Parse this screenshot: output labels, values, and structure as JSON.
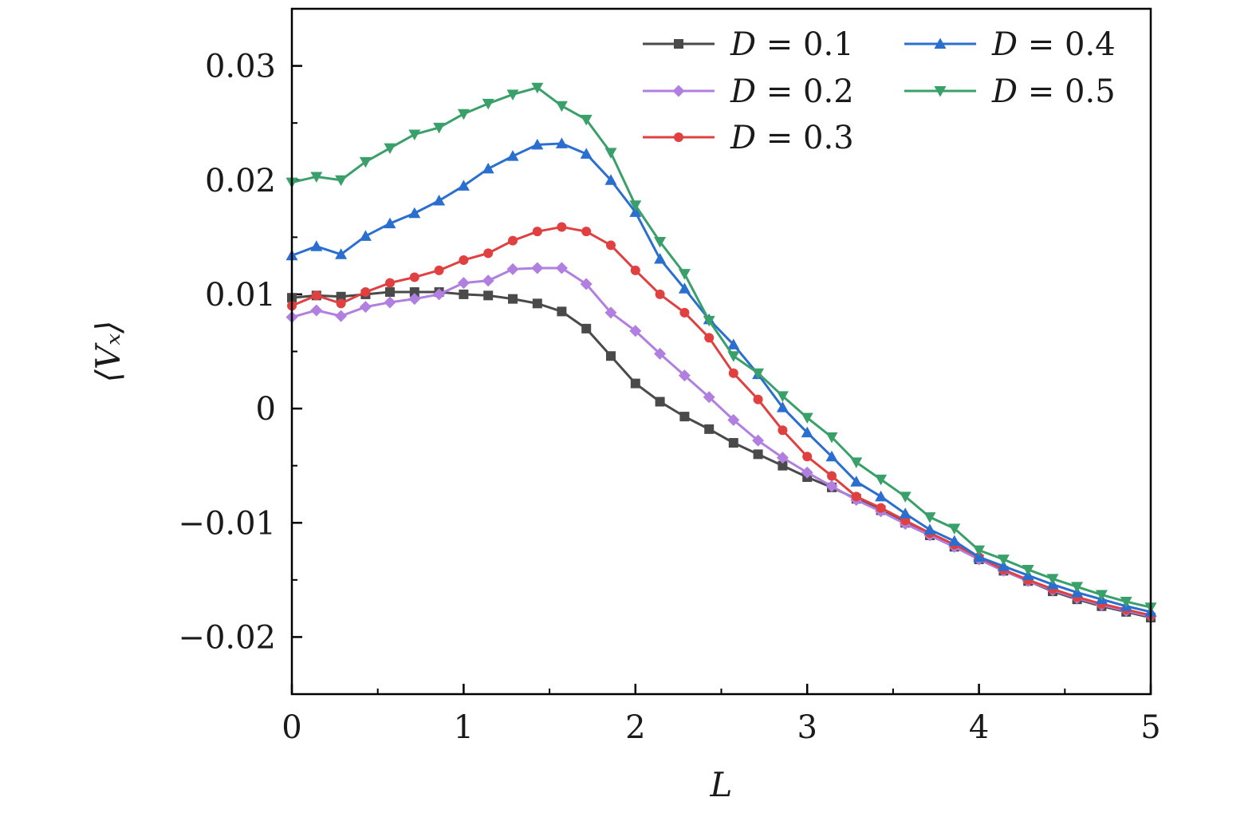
{
  "chart_data": {
    "type": "line",
    "xlabel": "L",
    "ylabel": "⟨Vₓ⟩",
    "xlim": [
      0,
      5
    ],
    "ylim": [
      -0.025,
      0.035
    ],
    "xticks": [
      {
        "value": 0,
        "label": "0"
      },
      {
        "value": 1,
        "label": "1"
      },
      {
        "value": 2,
        "label": "2"
      },
      {
        "value": 3,
        "label": "3"
      },
      {
        "value": 4,
        "label": "4"
      },
      {
        "value": 5,
        "label": "5"
      }
    ],
    "yticks": [
      {
        "value": -0.02,
        "label": "−0.02"
      },
      {
        "value": -0.01,
        "label": "−0.01"
      },
      {
        "value": 0,
        "label": "0"
      },
      {
        "value": 0.01,
        "label": "0.01"
      },
      {
        "value": 0.02,
        "label": "0.02"
      },
      {
        "value": 0.03,
        "label": "0.03"
      }
    ],
    "grid": false,
    "legend_position": "top-right",
    "x": [
      0,
      0.143,
      0.286,
      0.429,
      0.571,
      0.714,
      0.857,
      1.0,
      1.143,
      1.286,
      1.429,
      1.571,
      1.714,
      1.857,
      2.0,
      2.143,
      2.286,
      2.429,
      2.571,
      2.714,
      2.857,
      3.0,
      3.143,
      3.286,
      3.429,
      3.571,
      3.714,
      3.857,
      4.0,
      4.143,
      4.286,
      4.429,
      4.571,
      4.714,
      4.857,
      5.0
    ],
    "series": [
      {
        "name": "D = 0.1",
        "legend_var": "D",
        "legend_val": " = 0.1",
        "color": "#4a4a4a",
        "marker": "square",
        "values": [
          0.0097,
          0.0099,
          0.0098,
          0.01,
          0.0102,
          0.0102,
          0.0102,
          0.01,
          0.0099,
          0.0096,
          0.0092,
          0.0085,
          0.007,
          0.0046,
          0.0022,
          0.0006,
          -0.0007,
          -0.0018,
          -0.003,
          -0.004,
          -0.005,
          -0.006,
          -0.0069,
          -0.0079,
          -0.0089,
          -0.01,
          -0.0111,
          -0.0121,
          -0.0132,
          -0.0142,
          -0.0151,
          -0.016,
          -0.0167,
          -0.0173,
          -0.0178,
          -0.0183
        ]
      },
      {
        "name": "D = 0.2",
        "legend_var": "D",
        "legend_val": " = 0.2",
        "color": "#b07fe0",
        "marker": "diamond",
        "values": [
          0.008,
          0.0086,
          0.0081,
          0.0089,
          0.0093,
          0.0096,
          0.01,
          0.011,
          0.0112,
          0.0122,
          0.0123,
          0.0123,
          0.0109,
          0.0084,
          0.0068,
          0.0048,
          0.0029,
          0.001,
          -0.001,
          -0.0028,
          -0.0043,
          -0.0056,
          -0.0068,
          -0.008,
          -0.009,
          -0.0101,
          -0.0111,
          -0.0121,
          -0.0132,
          -0.0142,
          -0.0151,
          -0.0159,
          -0.0166,
          -0.0172,
          -0.0177,
          -0.0182
        ]
      },
      {
        "name": "D = 0.3",
        "legend_var": "D",
        "legend_val": " = 0.3",
        "color": "#e04040",
        "marker": "circle",
        "values": [
          0.009,
          0.0099,
          0.0092,
          0.0102,
          0.011,
          0.0115,
          0.0121,
          0.013,
          0.0136,
          0.0147,
          0.0155,
          0.0159,
          0.0155,
          0.0143,
          0.0121,
          0.01,
          0.0084,
          0.0062,
          0.0031,
          0.0008,
          -0.0019,
          -0.0042,
          -0.0059,
          -0.0077,
          -0.0087,
          -0.0098,
          -0.0109,
          -0.0119,
          -0.013,
          -0.0141,
          -0.015,
          -0.0158,
          -0.0165,
          -0.0171,
          -0.0176,
          -0.0181
        ]
      },
      {
        "name": "D = 0.4",
        "legend_var": "D",
        "legend_val": " = 0.4",
        "color": "#2a6fd0",
        "marker": "triangle-up",
        "values": [
          0.0134,
          0.0142,
          0.0135,
          0.0151,
          0.0162,
          0.0171,
          0.0182,
          0.0195,
          0.021,
          0.0221,
          0.0231,
          0.0232,
          0.0223,
          0.02,
          0.0172,
          0.0131,
          0.0105,
          0.0078,
          0.0056,
          0.003,
          0.0001,
          -0.0021,
          -0.0042,
          -0.0064,
          -0.0077,
          -0.0092,
          -0.0106,
          -0.0116,
          -0.013,
          -0.0138,
          -0.0146,
          -0.0154,
          -0.0161,
          -0.0167,
          -0.0173,
          -0.0178
        ]
      },
      {
        "name": "D = 0.5",
        "legend_var": "D",
        "legend_val": " = 0.5",
        "color": "#3aa06a",
        "marker": "triangle-down",
        "values": [
          0.0198,
          0.0203,
          0.02,
          0.0216,
          0.0228,
          0.024,
          0.0246,
          0.0258,
          0.0267,
          0.0275,
          0.0281,
          0.0265,
          0.0253,
          0.0224,
          0.0178,
          0.0146,
          0.0118,
          0.0077,
          0.0046,
          0.0031,
          0.0011,
          -0.0008,
          -0.0025,
          -0.0047,
          -0.0062,
          -0.0077,
          -0.0095,
          -0.0105,
          -0.0124,
          -0.0132,
          -0.0141,
          -0.0149,
          -0.0156,
          -0.0163,
          -0.0169,
          -0.0174
        ]
      }
    ]
  }
}
